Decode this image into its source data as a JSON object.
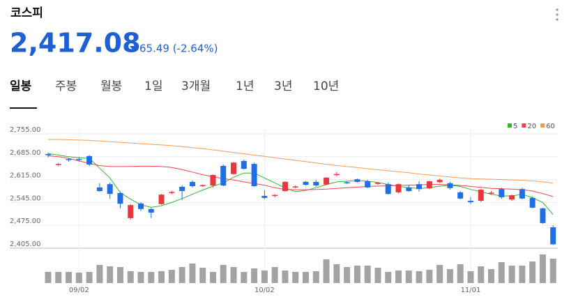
{
  "header": {
    "title": "코스피",
    "price": "2,417.08",
    "change": "65.49 (-2.64%)"
  },
  "tabs": [
    "일봉",
    "주봉",
    "월봉",
    "1일",
    "3개월",
    "1년",
    "3년",
    "10년"
  ],
  "chart_data": {
    "type": "candlestick",
    "categories": [
      null,
      null,
      null,
      "09/02",
      null,
      null,
      null,
      null,
      null,
      null,
      null,
      null,
      null,
      null,
      null,
      null,
      null,
      null,
      null,
      null,
      null,
      "10/02",
      null,
      null,
      null,
      null,
      null,
      null,
      null,
      null,
      null,
      null,
      null,
      null,
      null,
      null,
      null,
      null,
      null,
      null,
      null,
      "11/01",
      null,
      null,
      null,
      null,
      null,
      null,
      null,
      null
    ],
    "open": [
      2693,
      2660,
      2678,
      2678,
      2687,
      2591,
      2601,
      2574,
      2497,
      2542,
      2525,
      2540,
      2574,
      2593,
      2608,
      2596,
      2597,
      2657,
      2632,
      2672,
      2663,
      2565,
      2565,
      2580,
      2591,
      2608,
      2608,
      2600,
      2630,
      2607,
      2616,
      2610,
      2603,
      2601,
      2576,
      2591,
      2601,
      2588,
      2607,
      2604,
      2576,
      2550,
      2550,
      2572,
      2586,
      2554,
      2586,
      2559,
      2527,
      2469
    ],
    "high": [
      2697,
      2666,
      2681,
      2684,
      2690,
      2604,
      2606,
      2578,
      2540,
      2546,
      2528,
      2571,
      2580,
      2597,
      2612,
      2600,
      2631,
      2661,
      2669,
      2676,
      2667,
      2582,
      2570,
      2610,
      2597,
      2610,
      2614,
      2623,
      2638,
      2610,
      2618,
      2614,
      2608,
      2606,
      2603,
      2597,
      2610,
      2612,
      2618,
      2608,
      2580,
      2561,
      2587,
      2580,
      2590,
      2569,
      2590,
      2563,
      2529,
      2475
    ],
    "low": [
      2683,
      2656,
      2670,
      2670,
      2656,
      2578,
      2556,
      2527,
      2492,
      2519,
      2497,
      2538,
      2570,
      2552,
      2591,
      2593,
      2590,
      2595,
      2630,
      2646,
      2593,
      2556,
      2561,
      2578,
      2588,
      2597,
      2593,
      2597,
      2625,
      2601,
      2606,
      2589,
      2599,
      2569,
      2573,
      2578,
      2578,
      2586,
      2605,
      2584,
      2555,
      2540,
      2546,
      2569,
      2556,
      2550,
      2555,
      2527,
      2480,
      2415
    ],
    "close": [
      2690,
      2663,
      2675,
      2676,
      2661,
      2580,
      2571,
      2541,
      2537,
      2525,
      2514,
      2569,
      2577,
      2580,
      2595,
      2598,
      2629,
      2597,
      2667,
      2648,
      2595,
      2559,
      2568,
      2608,
      2594,
      2599,
      2597,
      2621,
      2632,
      2604,
      2608,
      2591,
      2605,
      2571,
      2601,
      2580,
      2586,
      2610,
      2614,
      2589,
      2557,
      2546,
      2584,
      2575,
      2561,
      2567,
      2557,
      2529,
      2482,
      2417
    ],
    "up_color": "#e8383d",
    "down_color": "#1e6fe6",
    "series": [
      {
        "name": "5",
        "color": "#2fb62f",
        "values": [
          2695,
          2690,
          2685,
          2682,
          2680,
          2650,
          2620,
          2575,
          2555,
          2538,
          2530,
          2535,
          2545,
          2557,
          2570,
          2583,
          2595,
          2605,
          2622,
          2635,
          2635,
          2620,
          2605,
          2590,
          2578,
          2582,
          2590,
          2600,
          2608,
          2610,
          2612,
          2610,
          2606,
          2600,
          2594,
          2590,
          2588,
          2590,
          2595,
          2598,
          2594,
          2585,
          2578,
          2570,
          2565,
          2565,
          2570,
          2560,
          2545,
          2508
        ]
      },
      {
        "name": "20",
        "color": "#f0424a",
        "values": [
          2688,
          2685,
          2680,
          2672,
          2665,
          2658,
          2655,
          2655,
          2655,
          2656,
          2656,
          2655,
          2652,
          2646,
          2638,
          2630,
          2624,
          2618,
          2614,
          2608,
          2603,
          2598,
          2590,
          2585,
          2584,
          2584,
          2585,
          2586,
          2588,
          2590,
          2592,
          2594,
          2595,
          2596,
          2597,
          2598,
          2599,
          2600,
          2600,
          2599,
          2597,
          2594,
          2591,
          2588,
          2587,
          2586,
          2584,
          2580,
          2572,
          2563
        ]
      },
      {
        "name": "60",
        "color": "#f39a54",
        "values": [
          2738,
          2738,
          2737,
          2736,
          2735,
          2733,
          2731,
          2729,
          2727,
          2725,
          2723,
          2721,
          2719,
          2716,
          2713,
          2710,
          2706,
          2702,
          2698,
          2694,
          2690,
          2686,
          2682,
          2678,
          2674,
          2670,
          2666,
          2662,
          2658,
          2655,
          2652,
          2648,
          2645,
          2642,
          2639,
          2636,
          2632,
          2629,
          2626,
          2623,
          2620,
          2618,
          2617,
          2616,
          2615,
          2614,
          2613,
          2611,
          2608,
          2604
        ]
      }
    ],
    "volume": {
      "color": "#a3a3a3",
      "ylim": [
        0,
        50
      ],
      "values": [
        16,
        16,
        16,
        15,
        16,
        26,
        24,
        23,
        17,
        16,
        16,
        17,
        19,
        23,
        28,
        22,
        16,
        26,
        23,
        16,
        21,
        18,
        23,
        18,
        16,
        16,
        17,
        34,
        27,
        23,
        25,
        25,
        22,
        16,
        18,
        18,
        17,
        19,
        26,
        20,
        27,
        17,
        24,
        20,
        30,
        25,
        25,
        31,
        41,
        35
      ]
    },
    "ylim": [
      2405,
      2755
    ],
    "yticks": [
      {
        "value": 2755,
        "label": "2,755.00"
      },
      {
        "value": 2685,
        "label": "2,685.00"
      },
      {
        "value": 2615,
        "label": "2,615.00"
      },
      {
        "value": 2545,
        "label": "2,545.00"
      },
      {
        "value": 2475,
        "label": "2,475.00"
      },
      {
        "value": 2405,
        "label": "2,405.00"
      }
    ],
    "grid": true,
    "legend": "top-right"
  }
}
